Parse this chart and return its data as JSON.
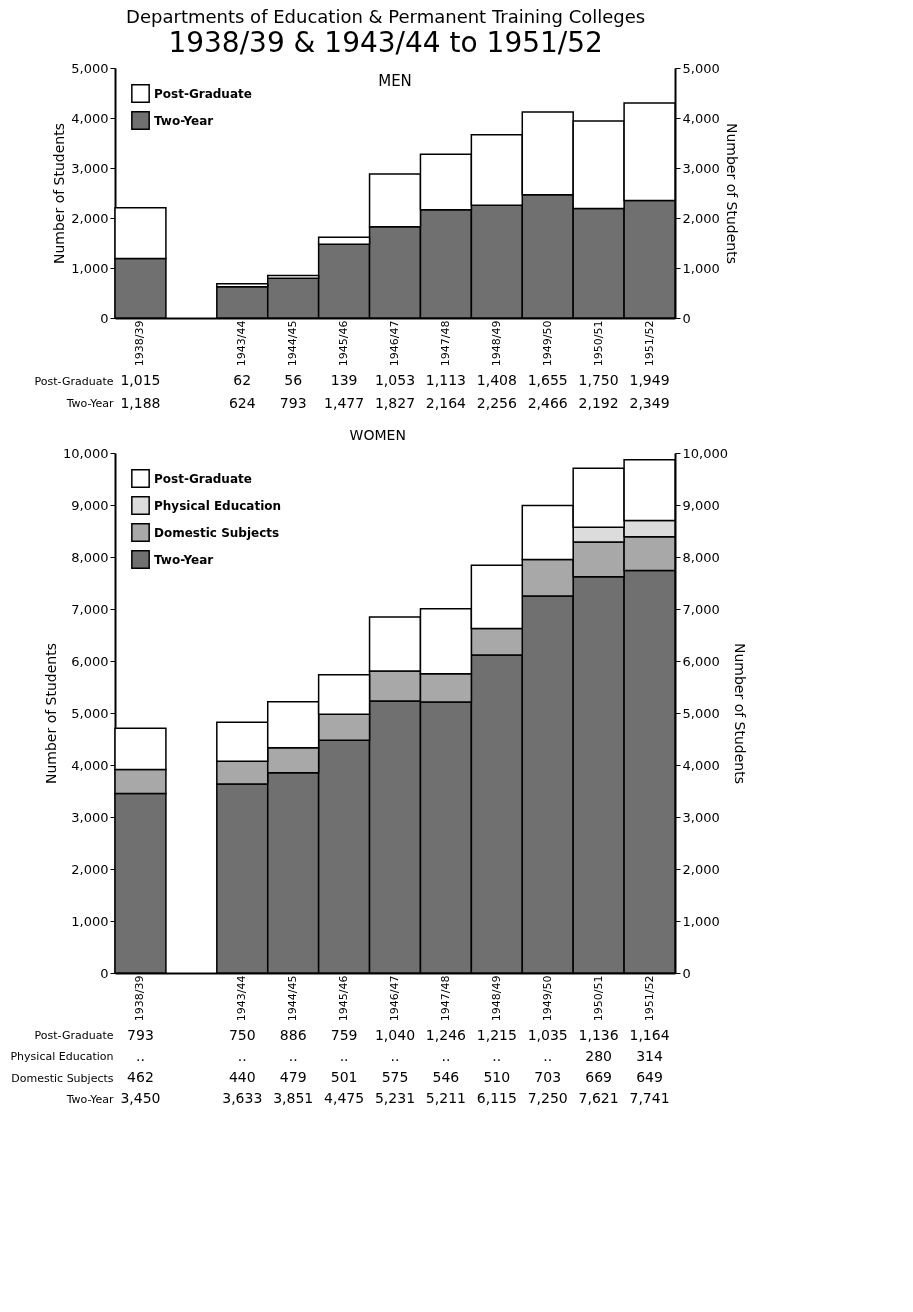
{
  "chart_data": [
    {
      "type": "bar",
      "title": "Departments of Education & Permanent Training Colleges",
      "subtitle": "1938/39 & 1943/44 to 1951/52",
      "annotations": [
        "MEN"
      ],
      "stacked": true,
      "categories": [
        "1938/39",
        null,
        "1943/44",
        "1944/45",
        "1945/46",
        "1946/47",
        "1947/48",
        "1948/49",
        "1949/50",
        "1950/51",
        "1951/52"
      ],
      "ylabel": "Number of Students",
      "y2label": "Number of Students",
      "ylim": [
        0,
        5000
      ],
      "yticks": [
        0,
        {
          "value": 1000,
          "label": "1,000"
        },
        {
          "value": 2000,
          "label": "2,000"
        },
        {
          "value": 3000,
          "label": "3,000"
        },
        {
          "value": 4000,
          "label": "4,000"
        },
        {
          "value": 5000,
          "label": "5,000"
        }
      ],
      "y2lim": [
        0,
        5000
      ],
      "y2ticks": [
        0,
        {
          "value": 1000,
          "label": "1,000"
        },
        {
          "value": 2000,
          "label": "2,000"
        },
        {
          "value": 3000,
          "label": "3,000"
        },
        {
          "value": 4000,
          "label": "4,000"
        },
        {
          "value": 5000,
          "label": "5,000"
        }
      ],
      "legend": "top left",
      "grid": false,
      "series": [
        {
          "name": "Two-Year",
          "color": "#707070",
          "values": [
            1188,
            null,
            624,
            793,
            1477,
            1827,
            2164,
            2256,
            2466,
            2192,
            2349
          ],
          "value_labels": [
            "1,188",
            null,
            "624",
            "793",
            "1,477",
            "1,827",
            "2,164",
            "2,256",
            "2,466",
            "2,192",
            "2,349"
          ]
        },
        {
          "name": "Post-Graduate",
          "color": "#ffffff",
          "values": [
            1015,
            null,
            62,
            56,
            139,
            1053,
            1113,
            1408,
            1655,
            1750,
            1949
          ],
          "value_labels": [
            "1,015",
            null,
            "62",
            "56",
            "139",
            "1,053",
            "1,113",
            "1,408",
            "1,655",
            "1,750",
            "1,949"
          ]
        }
      ]
    },
    {
      "type": "bar",
      "title": "WOMEN",
      "stacked": true,
      "categories": [
        "1938/39",
        null,
        "1943/44",
        "1944/45",
        "1945/46",
        "1946/47",
        "1947/48",
        "1948/49",
        "1949/50",
        "1950/51",
        "1951/52"
      ],
      "ylabel": "Number of Students",
      "y2label": "Number of Students",
      "ylim": [
        0,
        10000
      ],
      "yticks": [
        0,
        {
          "value": 1000,
          "label": "1,000"
        },
        {
          "value": 2000,
          "label": "2,000"
        },
        {
          "value": 3000,
          "label": "3,000"
        },
        {
          "value": 4000,
          "label": "4,000"
        },
        {
          "value": 5000,
          "label": "5,000"
        },
        {
          "value": 6000,
          "label": "6,000"
        },
        {
          "value": 7000,
          "label": "7,000"
        },
        {
          "value": 8000,
          "label": "8,000"
        },
        {
          "value": 9000,
          "label": "9,000"
        },
        {
          "value": 10000,
          "label": "10,000"
        }
      ],
      "y2lim": [
        0,
        10000
      ],
      "y2ticks": [
        0,
        {
          "value": 1000,
          "label": "1,000"
        },
        {
          "value": 2000,
          "label": "2,000"
        },
        {
          "value": 3000,
          "label": "3,000"
        },
        {
          "value": 4000,
          "label": "4,000"
        },
        {
          "value": 5000,
          "label": "5,000"
        },
        {
          "value": 6000,
          "label": "6,000"
        },
        {
          "value": 7000,
          "label": "7,000"
        },
        {
          "value": 8000,
          "label": "8,000"
        },
        {
          "value": 9000,
          "label": "9,000"
        },
        {
          "value": 10000,
          "label": "10,000"
        }
      ],
      "legend": "top left",
      "grid": false,
      "series": [
        {
          "name": "Two-Year",
          "color": "#707070",
          "values": [
            3450,
            null,
            3633,
            3851,
            4475,
            5231,
            5211,
            6115,
            7250,
            7621,
            7741
          ],
          "value_labels": [
            "3,450",
            null,
            "3,633",
            "3,851",
            "4,475",
            "5,231",
            "5,211",
            "6,115",
            "7,250",
            "7,621",
            "7,741"
          ]
        },
        {
          "name": "Domestic Subjects",
          "color": "#a8a8a8",
          "values": [
            462,
            null,
            440,
            479,
            501,
            575,
            546,
            510,
            703,
            669,
            649
          ],
          "value_labels": [
            "462",
            null,
            "440",
            "479",
            "501",
            "575",
            "546",
            "510",
            "703",
            "669",
            "649"
          ]
        },
        {
          "name": "Physical Education",
          "color": "#dcdcdc",
          "values": [
            null,
            null,
            null,
            null,
            null,
            null,
            null,
            null,
            null,
            280,
            314
          ],
          "value_labels": [
            "..",
            null,
            "..",
            "..",
            "..",
            "..",
            "..",
            "..",
            "..",
            "280",
            "314"
          ]
        },
        {
          "name": "Post-Graduate",
          "color": "#ffffff",
          "values": [
            793,
            null,
            750,
            886,
            759,
            1040,
            1246,
            1215,
            1035,
            1136,
            1164
          ],
          "value_labels": [
            "793",
            null,
            "750",
            "886",
            "759",
            "1,040",
            "1,246",
            "1,215",
            "1,035",
            "1,136",
            "1,164"
          ]
        }
      ]
    }
  ]
}
